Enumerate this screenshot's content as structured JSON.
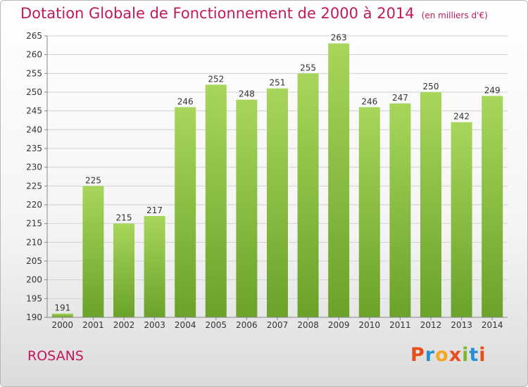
{
  "colors": {
    "title": "#c0185a",
    "bar_light": "#a8d65a",
    "bar_dark": "#6aa22a",
    "grid": "#d0d0d0",
    "axis_text": "#333333",
    "logo_letters": [
      "#e84e1b",
      "#2b8fd3",
      "#f5a623",
      "#e84e1b",
      "#7cb82f",
      "#2b8fd3",
      "#e84e1b"
    ]
  },
  "header": {
    "title": "Dotation Globale de Fonctionnement de 2000 à 2014",
    "subtitle": "(en milliers d'€)"
  },
  "footer": {
    "commune": "ROSANS",
    "logo": "Proxiti"
  },
  "chart_data": {
    "type": "bar",
    "title": "Dotation Globale de Fonctionnement de 2000 à 2014",
    "subtitle": "(en milliers d'€)",
    "xlabel": "",
    "ylabel": "",
    "categories": [
      "2000",
      "2001",
      "2002",
      "2003",
      "2004",
      "2005",
      "2006",
      "2007",
      "2008",
      "2009",
      "2010",
      "2011",
      "2012",
      "2013",
      "2014"
    ],
    "values": [
      191,
      225,
      215,
      217,
      246,
      252,
      248,
      251,
      255,
      263,
      246,
      247,
      250,
      242,
      249
    ],
    "ylim": [
      190,
      265
    ],
    "yticks": [
      190,
      195,
      200,
      205,
      210,
      215,
      220,
      225,
      230,
      235,
      240,
      245,
      250,
      255,
      260,
      265
    ],
    "grid": true,
    "data_labels": true
  }
}
